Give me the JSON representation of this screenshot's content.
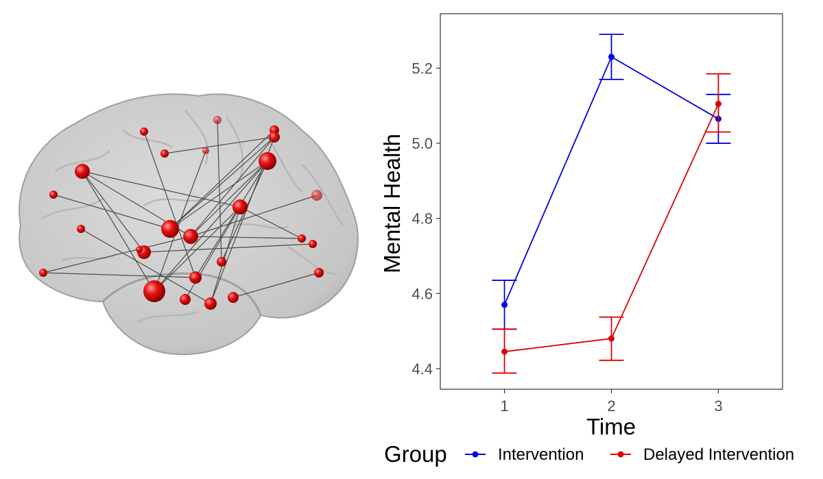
{
  "colors": {
    "intervention": "#0000dd",
    "delayed": "#dd0000",
    "node": "#e01010",
    "brain": "#c8c8c8"
  },
  "brain_graphic": {
    "description_icon": "brain-connectivity-icon"
  },
  "chart_data": {
    "type": "line",
    "title": "",
    "xlabel": "Time",
    "ylabel": "Mental Health",
    "x": [
      1,
      2,
      3
    ],
    "x_ticks": [
      "1",
      "2",
      "3"
    ],
    "xlim": [
      0.4,
      3.6
    ],
    "ylim": [
      4.345,
      5.345
    ],
    "y_ticks": [
      "4.4",
      "4.6",
      "4.8",
      "5.0",
      "5.2"
    ],
    "y_tick_values": [
      4.4,
      4.6,
      4.8,
      5.0,
      5.2
    ],
    "grid": false,
    "legend_position": "bottom",
    "legend_title": "Group",
    "series": [
      {
        "name": "Intervention",
        "color": "#0000dd",
        "values": [
          4.57,
          5.23,
          5.065
        ],
        "err_low": [
          4.505,
          5.17,
          5.0
        ],
        "err_high": [
          4.635,
          5.29,
          5.13
        ]
      },
      {
        "name": "Delayed Intervention",
        "color": "#dd0000",
        "values": [
          4.445,
          4.48,
          5.105
        ],
        "err_low": [
          4.388,
          4.422,
          5.03
        ],
        "err_high": [
          4.505,
          4.537,
          5.185
        ]
      }
    ]
  }
}
